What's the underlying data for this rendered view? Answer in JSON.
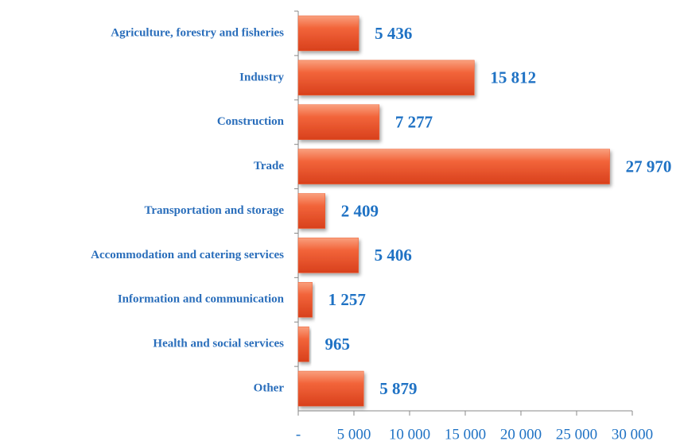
{
  "chart_data": {
    "type": "bar",
    "orientation": "horizontal",
    "categories": [
      "Agriculture, forestry and fisheries",
      "Industry",
      "Construction",
      "Trade",
      "Transportation and storage",
      "Accommodation and catering services",
      "Information and communication",
      "Health and social services",
      "Other"
    ],
    "values": [
      5436,
      15812,
      7277,
      27970,
      2409,
      5406,
      1257,
      965,
      5879
    ],
    "value_labels": [
      "5 436",
      "15 812",
      "7 277",
      "27 970",
      "2 409",
      "5 406",
      "1 257",
      "965",
      "5 879"
    ],
    "color": "#f05a2c",
    "xlim": [
      0,
      30000
    ],
    "xticks": [
      {
        "value": 0,
        "label": "-"
      },
      {
        "value": 5000,
        "label": "5 000"
      },
      {
        "value": 10000,
        "label": "10 000"
      },
      {
        "value": 15000,
        "label": "15 000"
      },
      {
        "value": 20000,
        "label": "20 000"
      },
      {
        "value": 25000,
        "label": "25 000"
      },
      {
        "value": 30000,
        "label": "30 000"
      }
    ],
    "grid": false
  }
}
